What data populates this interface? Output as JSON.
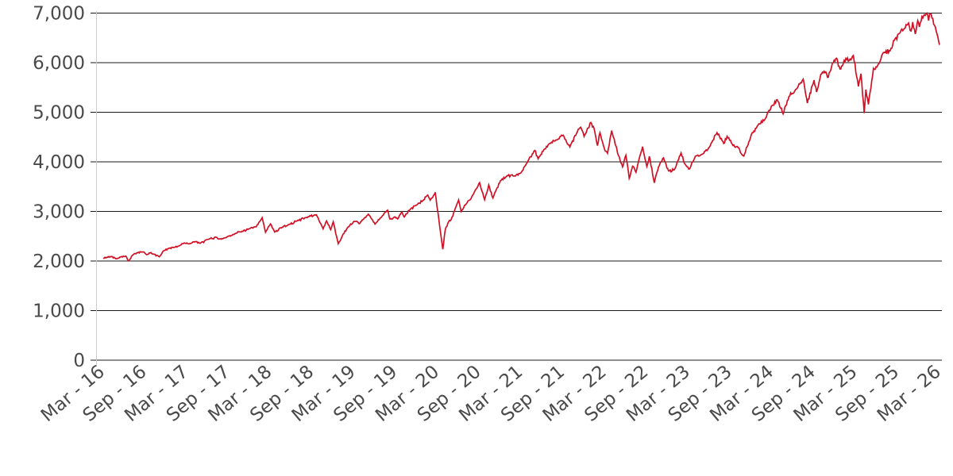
{
  "chart_data": {
    "type": "line",
    "title": "",
    "legend": "none",
    "grid": "horizontal",
    "colors": {
      "line": "#d01125",
      "grid": "#1a1a1a",
      "axis_line": "#cccccc",
      "tick_label": "#4a4a4a",
      "background": "#ffffff"
    },
    "x_axis": {
      "tick_interval_months": 6,
      "label_rotation_deg": -40,
      "tick_labels": [
        "Mar - 16",
        "Sep - 16",
        "Mar - 17",
        "Sep - 17",
        "Mar - 18",
        "Sep - 18",
        "Mar - 19",
        "Sep - 19",
        "Mar - 20",
        "Sep - 20",
        "Mar - 21",
        "Sep - 21",
        "Mar - 22",
        "Sep - 22",
        "Mar - 23",
        "Sep - 23",
        "Mar - 24",
        "Sep - 24",
        "Mar - 25",
        "Sep - 25",
        "Mar - 26"
      ],
      "range_years": [
        0,
        10
      ]
    },
    "y_axis": {
      "min": 0,
      "max": 7000,
      "tick_values": [
        0,
        1000,
        2000,
        3000,
        4000,
        5000,
        6000,
        7000
      ],
      "tick_labels": [
        "0",
        "1,000",
        "2,000",
        "3,000",
        "4,000",
        "5,000",
        "6,000",
        "7,000"
      ]
    },
    "noise": {
      "seed": 42,
      "step_years": 0.01,
      "frac_smooth": 0.0075,
      "frac_base": 0.002
    },
    "series": [
      {
        "color": "#d01125",
        "anchors": [
          [
            0.0,
            2050
          ],
          [
            0.04,
            2073
          ],
          [
            0.1,
            2091
          ],
          [
            0.16,
            2047
          ],
          [
            0.22,
            2092
          ],
          [
            0.27,
            2099
          ],
          [
            0.3,
            2001
          ],
          [
            0.32,
            2036
          ],
          [
            0.34,
            2099
          ],
          [
            0.4,
            2165
          ],
          [
            0.48,
            2184
          ],
          [
            0.52,
            2128
          ],
          [
            0.56,
            2162
          ],
          [
            0.6,
            2142
          ],
          [
            0.67,
            2085
          ],
          [
            0.72,
            2205
          ],
          [
            0.78,
            2250
          ],
          [
            0.83,
            2275
          ],
          [
            0.9,
            2300
          ],
          [
            0.97,
            2365
          ],
          [
            1.04,
            2352
          ],
          [
            1.1,
            2392
          ],
          [
            1.16,
            2357
          ],
          [
            1.25,
            2435
          ],
          [
            1.35,
            2478
          ],
          [
            1.41,
            2440
          ],
          [
            1.5,
            2502
          ],
          [
            1.58,
            2557
          ],
          [
            1.66,
            2600
          ],
          [
            1.75,
            2652
          ],
          [
            1.83,
            2690
          ],
          [
            1.9,
            2873
          ],
          [
            1.94,
            2581
          ],
          [
            2.0,
            2748
          ],
          [
            2.05,
            2582
          ],
          [
            2.12,
            2670
          ],
          [
            2.22,
            2735
          ],
          [
            2.32,
            2812
          ],
          [
            2.42,
            2875
          ],
          [
            2.55,
            2931
          ],
          [
            2.63,
            2650
          ],
          [
            2.67,
            2810
          ],
          [
            2.72,
            2633
          ],
          [
            2.75,
            2790
          ],
          [
            2.81,
            2351
          ],
          [
            2.86,
            2512
          ],
          [
            2.92,
            2670
          ],
          [
            3.0,
            2800
          ],
          [
            3.06,
            2752
          ],
          [
            3.17,
            2946
          ],
          [
            3.25,
            2744
          ],
          [
            3.33,
            2892
          ],
          [
            3.4,
            3026
          ],
          [
            3.43,
            2845
          ],
          [
            3.49,
            2890
          ],
          [
            3.52,
            2848
          ],
          [
            3.57,
            2990
          ],
          [
            3.6,
            2888
          ],
          [
            3.67,
            3040
          ],
          [
            3.75,
            3130
          ],
          [
            3.83,
            3230
          ],
          [
            3.88,
            3330
          ],
          [
            3.91,
            3226
          ],
          [
            3.97,
            3386
          ],
          [
            4.06,
            2237
          ],
          [
            4.09,
            2630
          ],
          [
            4.13,
            2790
          ],
          [
            4.16,
            2832
          ],
          [
            4.25,
            3232
          ],
          [
            4.28,
            3002
          ],
          [
            4.33,
            3130
          ],
          [
            4.42,
            3330
          ],
          [
            4.5,
            3581
          ],
          [
            4.56,
            3237
          ],
          [
            4.61,
            3534
          ],
          [
            4.66,
            3270
          ],
          [
            4.75,
            3622
          ],
          [
            4.83,
            3722
          ],
          [
            4.91,
            3714
          ],
          [
            4.99,
            3770
          ],
          [
            5.08,
            4020
          ],
          [
            5.16,
            4230
          ],
          [
            5.2,
            4063
          ],
          [
            5.27,
            4250
          ],
          [
            5.33,
            4360
          ],
          [
            5.42,
            4440
          ],
          [
            5.5,
            4537
          ],
          [
            5.58,
            4300
          ],
          [
            5.67,
            4610
          ],
          [
            5.71,
            4700
          ],
          [
            5.75,
            4513
          ],
          [
            5.83,
            4793
          ],
          [
            5.87,
            4670
          ],
          [
            5.91,
            4326
          ],
          [
            5.94,
            4587
          ],
          [
            6.0,
            4225
          ],
          [
            6.03,
            4173
          ],
          [
            6.08,
            4631
          ],
          [
            6.16,
            4132
          ],
          [
            6.21,
            3900
          ],
          [
            6.25,
            4132
          ],
          [
            6.29,
            3667
          ],
          [
            6.33,
            3912
          ],
          [
            6.37,
            3790
          ],
          [
            6.45,
            4305
          ],
          [
            6.5,
            3908
          ],
          [
            6.53,
            4110
          ],
          [
            6.59,
            3577
          ],
          [
            6.64,
            3900
          ],
          [
            6.7,
            4080
          ],
          [
            6.76,
            3818
          ],
          [
            6.83,
            3840
          ],
          [
            6.91,
            4180
          ],
          [
            6.95,
            3970
          ],
          [
            7.01,
            3856
          ],
          [
            7.08,
            4110
          ],
          [
            7.16,
            4152
          ],
          [
            7.25,
            4300
          ],
          [
            7.34,
            4589
          ],
          [
            7.42,
            4370
          ],
          [
            7.46,
            4516
          ],
          [
            7.53,
            4330
          ],
          [
            7.58,
            4310
          ],
          [
            7.66,
            4117
          ],
          [
            7.75,
            4552
          ],
          [
            7.83,
            4742
          ],
          [
            7.91,
            4850
          ],
          [
            8.0,
            5137
          ],
          [
            8.06,
            5254
          ],
          [
            8.13,
            4967
          ],
          [
            8.2,
            5321
          ],
          [
            8.27,
            5432
          ],
          [
            8.37,
            5667
          ],
          [
            8.42,
            5186
          ],
          [
            8.5,
            5648
          ],
          [
            8.53,
            5408
          ],
          [
            8.58,
            5762
          ],
          [
            8.64,
            5815
          ],
          [
            8.67,
            5708
          ],
          [
            8.72,
            5995
          ],
          [
            8.77,
            6090
          ],
          [
            8.81,
            5872
          ],
          [
            8.84,
            5942
          ],
          [
            8.88,
            6086
          ],
          [
            8.92,
            6041
          ],
          [
            8.97,
            6144
          ],
          [
            9.03,
            5521
          ],
          [
            9.06,
            5777
          ],
          [
            9.1,
            4983
          ],
          [
            9.12,
            5457
          ],
          [
            9.15,
            5158
          ],
          [
            9.21,
            5886
          ],
          [
            9.25,
            5912
          ],
          [
            9.33,
            6205
          ],
          [
            9.41,
            6240
          ],
          [
            9.46,
            6450
          ],
          [
            9.52,
            6590
          ],
          [
            9.58,
            6690
          ],
          [
            9.63,
            6800
          ],
          [
            9.66,
            6640
          ],
          [
            9.68,
            6820
          ],
          [
            9.71,
            6580
          ],
          [
            9.74,
            6850
          ],
          [
            9.76,
            6720
          ],
          [
            9.79,
            6930
          ],
          [
            9.82,
            6970
          ],
          [
            9.85,
            7000
          ],
          [
            9.87,
            6850
          ],
          [
            9.89,
            6990
          ],
          [
            9.91,
            6900
          ],
          [
            9.94,
            6750
          ],
          [
            9.96,
            6640
          ],
          [
            9.98,
            6520
          ],
          [
            10.0,
            6360
          ]
        ]
      }
    ]
  }
}
